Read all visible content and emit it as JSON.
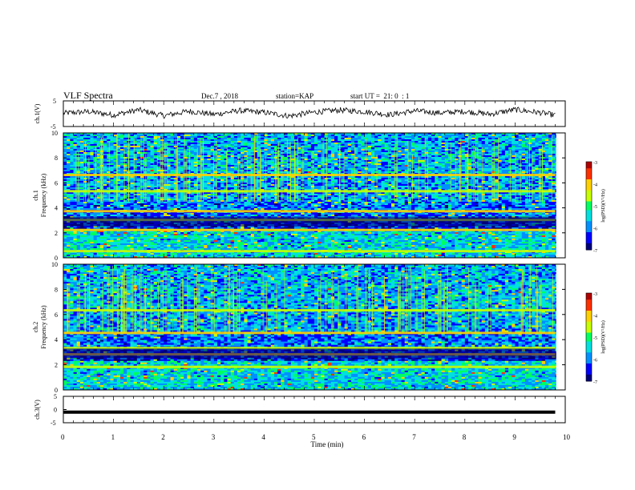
{
  "header": {
    "title": "VLF Spectra",
    "date": "Dec.7 , 2018",
    "station": "station=KAP",
    "start_ut": "start UT =  21: 0  : 1"
  },
  "colors": {
    "colormap": [
      "#00007a",
      "#0000ff",
      "#0090ff",
      "#00e0e0",
      "#00ff60",
      "#c8ff00",
      "#ffd000",
      "#ff3000",
      "#b00000"
    ],
    "trace": "#000000",
    "axis": "#000000"
  },
  "chart_data": [
    {
      "type": "line",
      "panel": "ch1-waveform",
      "ylabel": "ch.1(V)",
      "ylim": [
        -5,
        5
      ],
      "yticks": [
        "5",
        "-5"
      ],
      "xlim": [
        0,
        10
      ],
      "description_of_values": "noisy waveform oscillating roughly between -2 and +2 V",
      "x": [
        0,
        0.5,
        1,
        1.5,
        2,
        2.5,
        3,
        3.5,
        4,
        4.5,
        5,
        5.5,
        6,
        6.5,
        7,
        7.5,
        8,
        8.5,
        9,
        9.5,
        9.8
      ],
      "values": [
        0.2,
        0.8,
        -0.5,
        1.5,
        -0.8,
        1.0,
        -0.3,
        1.2,
        0.5,
        -0.9,
        0.6,
        1.4,
        0.8,
        -0.4,
        1.1,
        0.3,
        0.9,
        -0.2,
        1.6,
        0.4,
        -0.6
      ]
    },
    {
      "type": "heatmap",
      "panel": "ch1-spectrogram",
      "ylabel": "ch.1\nFrequency (kHz)",
      "ylim": [
        0,
        10
      ],
      "yticks": [
        "0",
        "2",
        "4",
        "6",
        "8",
        "10"
      ],
      "xlim": [
        0,
        10
      ],
      "colorbar": {
        "label": "log(PSD)(V²/Hz)",
        "range": [
          -7,
          -3
        ],
        "ticks": [
          "-3",
          "-4",
          "-5",
          "-6",
          "-7"
        ]
      },
      "bands_khz": [
        0.5,
        2.2,
        3.0,
        3.7,
        5.3,
        6.6
      ]
    },
    {
      "type": "heatmap",
      "panel": "ch2-spectrogram",
      "ylabel": "ch.2\nFrequency (kHz)",
      "ylim": [
        0,
        10
      ],
      "yticks": [
        "0",
        "2",
        "4",
        "6",
        "8",
        "10"
      ],
      "xlim": [
        0,
        10
      ],
      "colorbar": {
        "label": "log(PSD)(V²/Hz)",
        "range": [
          -7,
          -3
        ],
        "ticks": [
          "-3",
          "-4",
          "-5",
          "-6",
          "-7"
        ]
      },
      "bands_khz": [
        1.8,
        2.8,
        3.3,
        4.5,
        6.3
      ]
    },
    {
      "type": "line",
      "panel": "ch3-waveform",
      "ylabel": "ch.3(V)",
      "ylim": [
        -5,
        5
      ],
      "yticks": [
        "5",
        "0",
        "-5"
      ],
      "xlim": [
        0,
        10
      ],
      "x": [
        0,
        9.8
      ],
      "values": [
        -1,
        -1
      ]
    }
  ],
  "xaxis": {
    "label": "Time (min)",
    "ticks": [
      "0",
      "1",
      "2",
      "3",
      "4",
      "5",
      "6",
      "7",
      "8",
      "9",
      "10"
    ]
  }
}
